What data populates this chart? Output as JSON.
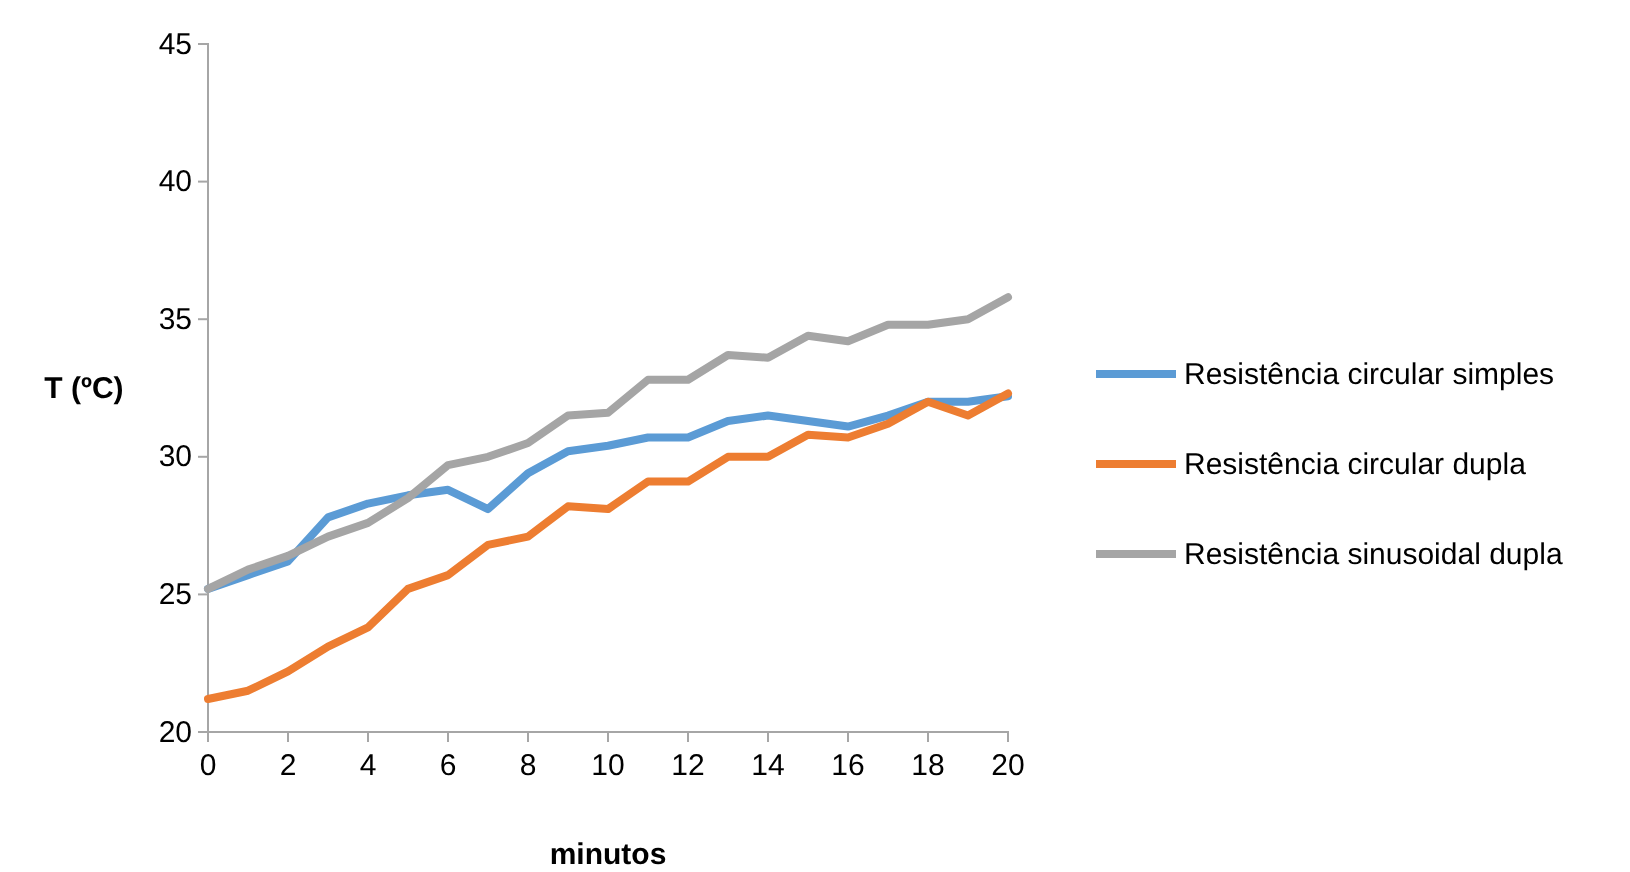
{
  "chart_data": {
    "type": "line",
    "xlabel": "minutos",
    "ylabel": "T (ºC)",
    "x": [
      0,
      1,
      2,
      3,
      4,
      5,
      6,
      7,
      8,
      9,
      10,
      11,
      12,
      13,
      14,
      15,
      16,
      17,
      18,
      19,
      20
    ],
    "xlim": [
      0,
      20
    ],
    "xticks": [
      0,
      2,
      4,
      6,
      8,
      10,
      12,
      14,
      16,
      18,
      20
    ],
    "ylim": [
      20,
      45
    ],
    "yticks": [
      20,
      25,
      30,
      35,
      40,
      45
    ],
    "grid": false,
    "legend": "right",
    "marker": "none",
    "line_style": "solid",
    "series": [
      {
        "name": "Resistência circular simples",
        "color": "#5b9bd5",
        "values": [
          25.2,
          25.7,
          26.2,
          27.8,
          28.3,
          28.6,
          28.8,
          28.1,
          29.4,
          30.2,
          30.4,
          30.7,
          30.7,
          31.3,
          31.5,
          31.3,
          31.1,
          31.5,
          32,
          32,
          32.2
        ]
      },
      {
        "name": "Resistência circular dupla",
        "color": "#ed7d31",
        "values": [
          21.2,
          21.5,
          22.2,
          23.1,
          23.8,
          25.2,
          25.7,
          26.8,
          27.1,
          28.2,
          28.1,
          29.1,
          29.1,
          30,
          30,
          30.8,
          30.7,
          31.2,
          32,
          31.5,
          32.3
        ]
      },
      {
        "name": "Resistência sinusoidal dupla",
        "color": "#a5a5a5",
        "values": [
          25.2,
          25.9,
          26.4,
          27.1,
          27.6,
          28.5,
          29.7,
          30,
          30.5,
          31.5,
          31.6,
          32.8,
          32.8,
          33.7,
          33.6,
          34.4,
          34.2,
          34.8,
          34.8,
          35,
          35.8
        ]
      }
    ]
  }
}
